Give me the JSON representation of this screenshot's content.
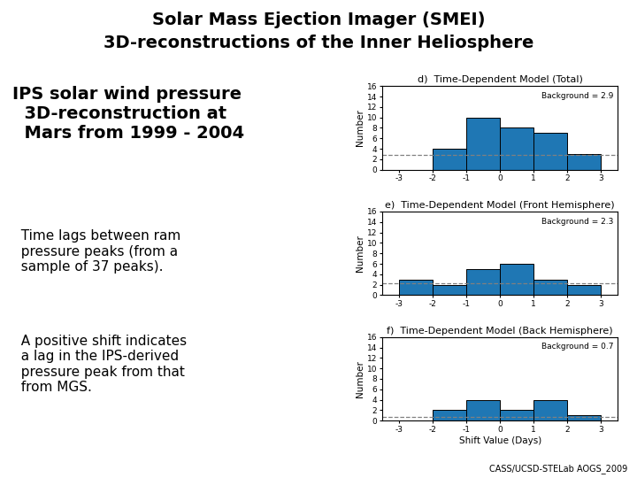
{
  "title": "Solar Mass Ejection Imager (SMEI)",
  "subtitle": "3D-reconstructions of the Inner Heliosphere",
  "annotations": [
    "IPS solar wind pressure\n  3D-reconstruction at\n  Mars from 1999 - 2004",
    "  Time lags between ram\n  pressure peaks (from a\n  sample of 37 peaks).",
    "  A positive shift indicates\n  a lag in the IPS-derived\n  pressure peak from that\n  from MGS."
  ],
  "source": "CASS/UCSD-STELab AOGS_2009",
  "chart_data": [
    {
      "type": "histogram",
      "title": "d)  Time-Dependent Model (Total)",
      "bins": [
        -3,
        -2,
        -1,
        0,
        1,
        2,
        3
      ],
      "values": [
        0,
        4,
        10,
        8,
        7,
        3
      ],
      "xlim": [
        -3.5,
        3.5
      ],
      "xticks": [
        -3,
        -2,
        -1,
        0,
        1,
        2,
        3
      ],
      "ylim": [
        0,
        16
      ],
      "yticks": [
        0,
        2,
        4,
        6,
        8,
        10,
        12,
        14,
        16
      ],
      "ylabel": "Number",
      "reference_line": 2.9,
      "line_style": "dashed",
      "annotations": [
        "Background = 2.9"
      ]
    },
    {
      "type": "histogram",
      "title": "e)  Time-Dependent Model (Front Hemisphere)",
      "bins": [
        -3,
        -2,
        -1,
        0,
        1,
        2,
        3
      ],
      "values": [
        3,
        2,
        5,
        6,
        3,
        2
      ],
      "xlim": [
        -3.5,
        3.5
      ],
      "xticks": [
        -3,
        -2,
        -1,
        0,
        1,
        2,
        3
      ],
      "ylim": [
        0,
        16
      ],
      "yticks": [
        0,
        2,
        4,
        6,
        8,
        10,
        12,
        14,
        16
      ],
      "ylabel": "Number",
      "reference_line": 2.3,
      "line_style": "dashed",
      "annotations": [
        "Background = 2.3"
      ]
    },
    {
      "type": "histogram",
      "title": "f)  Time-Dependent Model (Back Hemisphere)",
      "bins": [
        -3,
        -2,
        -1,
        0,
        1,
        2,
        3
      ],
      "values": [
        0,
        2,
        4,
        2,
        4,
        1
      ],
      "xlim": [
        -3.5,
        3.5
      ],
      "xticks": [
        -3,
        -2,
        -1,
        0,
        1,
        2,
        3
      ],
      "ylim": [
        0,
        16
      ],
      "yticks": [
        0,
        2,
        4,
        6,
        8,
        10,
        12,
        14,
        16
      ],
      "xlabel": "Shift Value (Days)",
      "ylabel": "Number",
      "reference_line": 0.7,
      "line_style": "dashed",
      "annotations": [
        "Background = 0.7"
      ]
    }
  ]
}
